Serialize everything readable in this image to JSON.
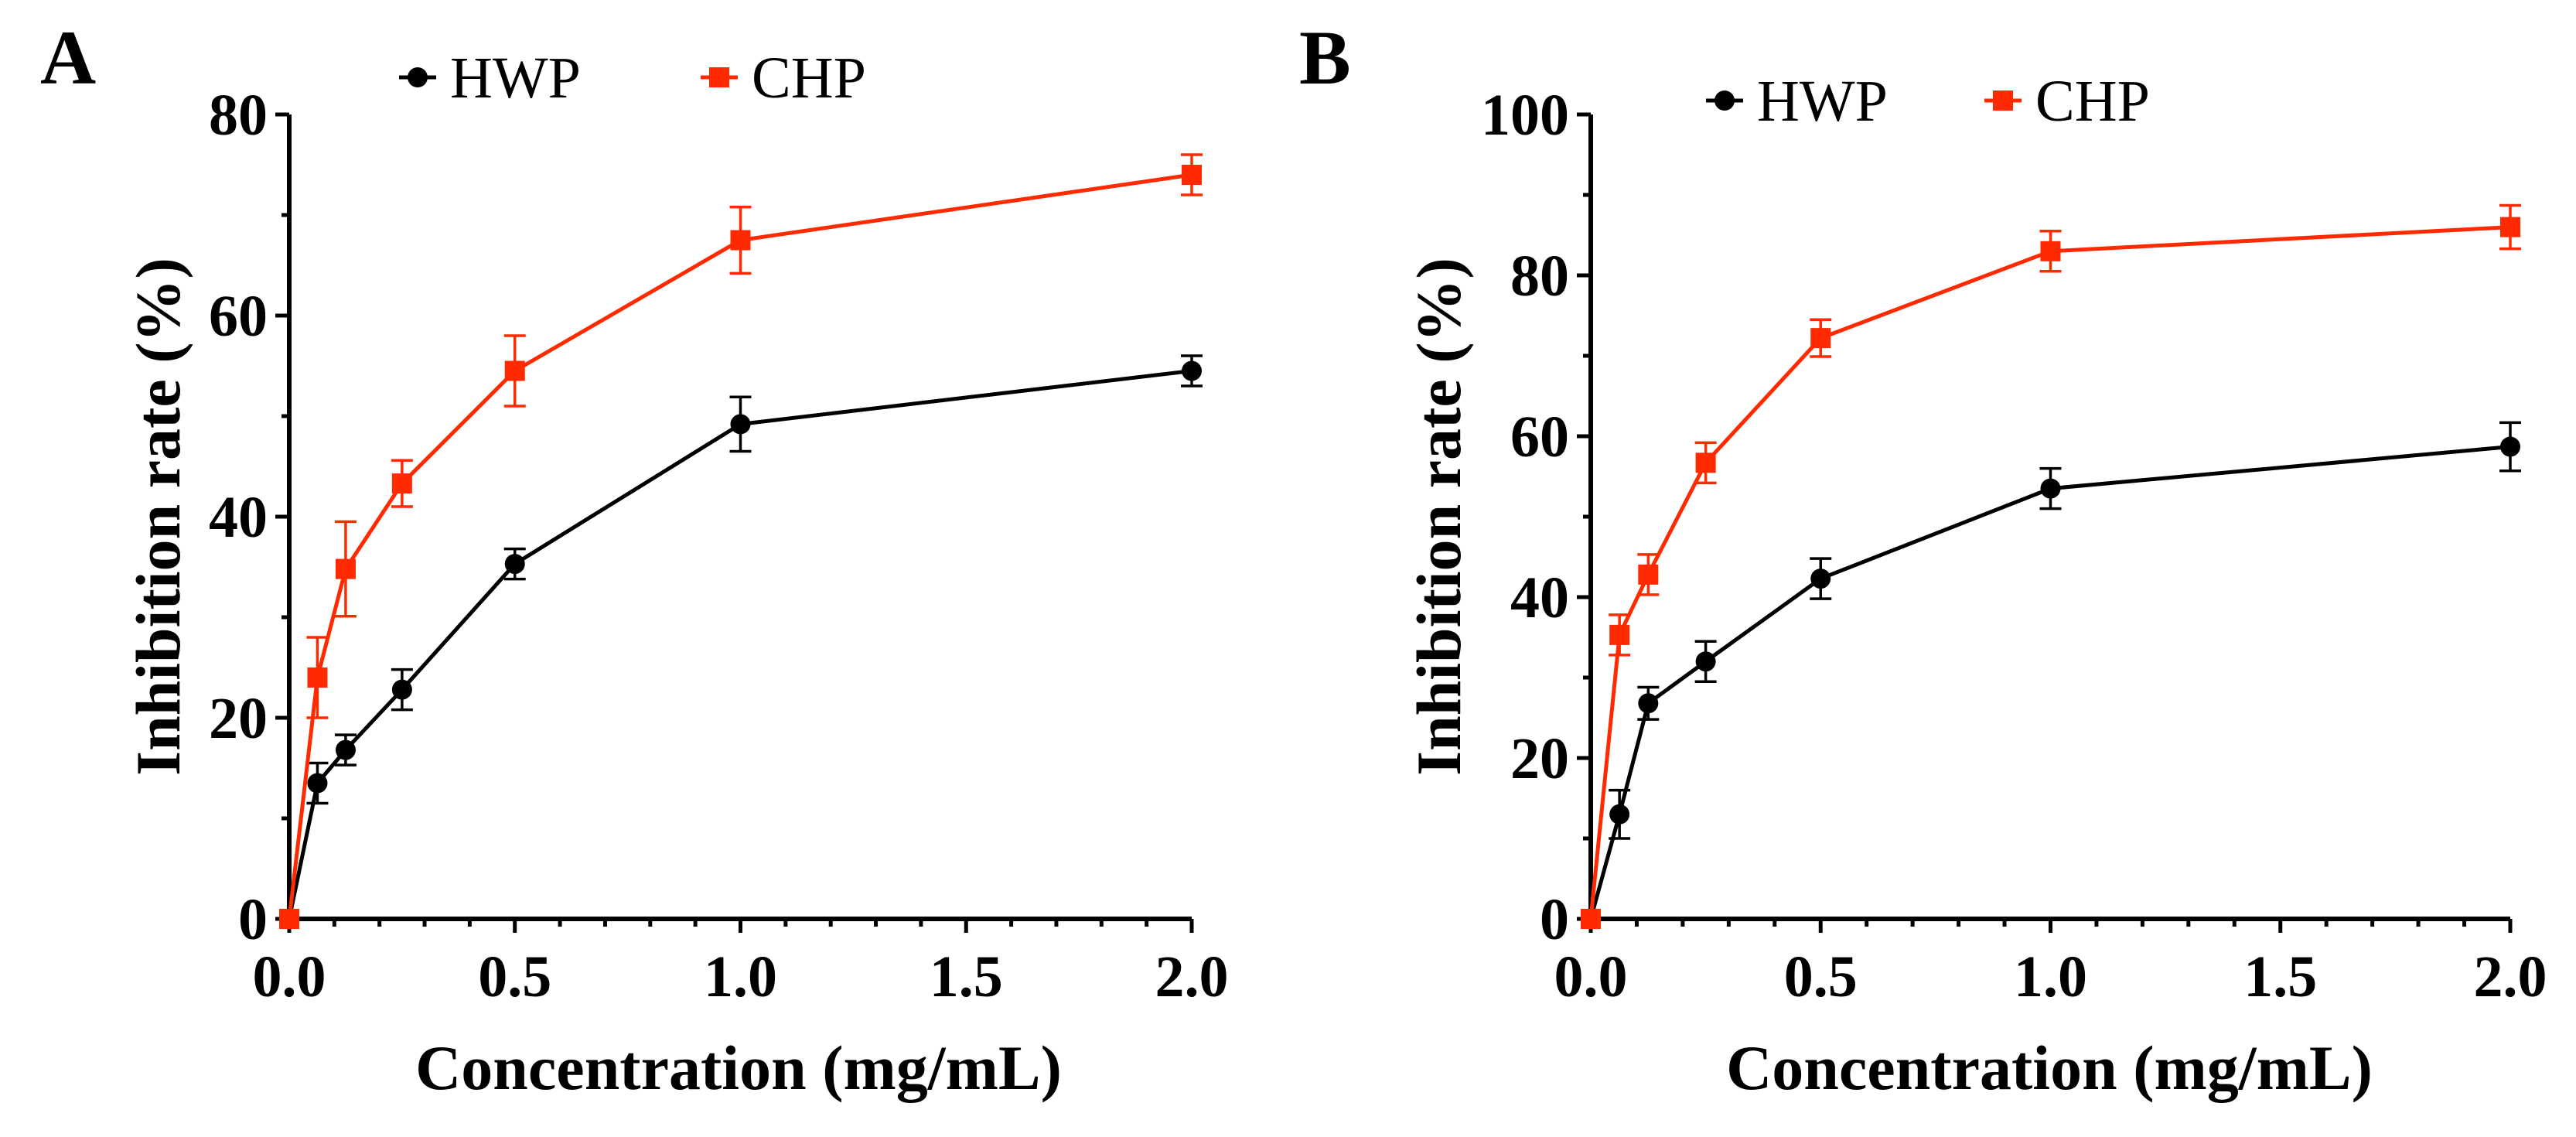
{
  "chart_data": [
    {
      "panel": "A",
      "type": "line",
      "xlabel": "Concentration (mg/mL)",
      "ylabel": "Inhibition rate (%)",
      "xlim": [
        0,
        2.0
      ],
      "ylim": [
        0,
        80
      ],
      "xticks": [
        0.0,
        0.5,
        1.0,
        1.5,
        2.0
      ],
      "xtick_labels": [
        "0.0",
        "0.5",
        "1.0",
        "1.5",
        "2.0"
      ],
      "yticks": [
        0,
        20,
        40,
        60,
        80
      ],
      "ytick_labels": [
        "0",
        "20",
        "40",
        "60",
        "80"
      ],
      "legend_position": "top",
      "series": [
        {
          "name": "HWP",
          "color": "#000000",
          "marker": "circle",
          "x": [
            0,
            0.0625,
            0.125,
            0.25,
            0.5,
            1.0,
            2.0
          ],
          "y": [
            0,
            13.5,
            16.8,
            22.8,
            35.3,
            49.2,
            54.5
          ],
          "err": [
            0,
            2.0,
            1.5,
            2.0,
            1.5,
            2.7,
            1.5
          ]
        },
        {
          "name": "CHP",
          "color": "#ff2a00",
          "marker": "square",
          "x": [
            0,
            0.0625,
            0.125,
            0.25,
            0.5,
            1.0,
            2.0
          ],
          "y": [
            0,
            24.0,
            34.8,
            43.3,
            54.5,
            67.5,
            74.0
          ],
          "err": [
            0,
            4.0,
            4.7,
            2.3,
            3.5,
            3.3,
            2.0
          ]
        }
      ]
    },
    {
      "panel": "B",
      "type": "line",
      "xlabel": "Concentration (mg/mL)",
      "ylabel": "Inhibition rate (%)",
      "xlim": [
        0,
        2.0
      ],
      "ylim": [
        0,
        100
      ],
      "xticks": [
        0.0,
        0.5,
        1.0,
        1.5,
        2.0
      ],
      "xtick_labels": [
        "0.0",
        "0.5",
        "1.0",
        "1.5",
        "2.0"
      ],
      "yticks": [
        0,
        20,
        40,
        60,
        80,
        100
      ],
      "ytick_labels": [
        "0",
        "20",
        "40",
        "60",
        "80",
        "100"
      ],
      "legend_position": "top",
      "series": [
        {
          "name": "HWP",
          "color": "#000000",
          "marker": "circle",
          "x": [
            0,
            0.0625,
            0.125,
            0.25,
            0.5,
            1.0,
            2.0
          ],
          "y": [
            0,
            13.0,
            26.8,
            32.0,
            42.3,
            53.5,
            58.7
          ],
          "err": [
            0,
            3.0,
            2.0,
            2.5,
            2.5,
            2.5,
            3.0
          ]
        },
        {
          "name": "CHP",
          "color": "#ff2a00",
          "marker": "square",
          "x": [
            0,
            0.0625,
            0.125,
            0.25,
            0.5,
            1.0,
            2.0
          ],
          "y": [
            0,
            35.3,
            42.8,
            56.7,
            72.2,
            83.0,
            86.0
          ],
          "err": [
            0,
            2.5,
            2.5,
            2.5,
            2.3,
            2.5,
            2.7
          ]
        }
      ]
    }
  ]
}
